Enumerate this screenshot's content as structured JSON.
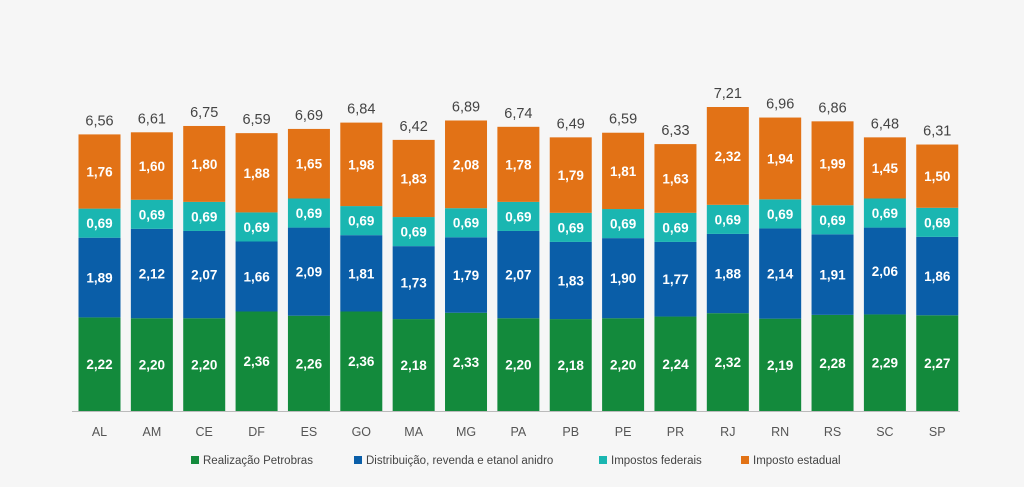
{
  "colors": {
    "background": "#f6f6f6",
    "realizacao": "#138a3c",
    "distribuicao": "#0a5ea8",
    "impostos_federais": "#1ab6b1",
    "imposto_estadual": "#e27216",
    "axis": "#bbbbbb"
  },
  "chart_data": {
    "type": "bar",
    "stacked": true,
    "categories": [
      "AL",
      "AM",
      "CE",
      "DF",
      "ES",
      "GO",
      "MA",
      "MG",
      "PA",
      "PB",
      "PE",
      "PR",
      "RJ",
      "RN",
      "RS",
      "SC",
      "SP"
    ],
    "series": [
      {
        "name": "Realização Petrobras",
        "color_key": "realizacao",
        "values": [
          2.22,
          2.2,
          2.2,
          2.36,
          2.26,
          2.36,
          2.18,
          2.33,
          2.2,
          2.18,
          2.2,
          2.24,
          2.32,
          2.19,
          2.28,
          2.29,
          2.27
        ],
        "labels": [
          "2,22",
          "2,20",
          "2,20",
          "2,36",
          "2,26",
          "2,36",
          "2,18",
          "2,33",
          "2,20",
          "2,18",
          "2,20",
          "2,24",
          "2,32",
          "2,19",
          "2,28",
          "2,29",
          "2,27"
        ]
      },
      {
        "name": "Distribuição, revenda e etanol anidro",
        "color_key": "distribuicao",
        "values": [
          1.89,
          2.12,
          2.07,
          1.66,
          2.09,
          1.81,
          1.73,
          1.79,
          2.07,
          1.83,
          1.9,
          1.77,
          1.88,
          2.14,
          1.91,
          2.06,
          1.86
        ],
        "labels": [
          "1,89",
          "2,12",
          "2,07",
          "1,66",
          "2,09",
          "1,81",
          "1,73",
          "1,79",
          "2,07",
          "1,83",
          "1,90",
          "1,77",
          "1,88",
          "2,14",
          "1,91",
          "2,06",
          "1,86"
        ]
      },
      {
        "name": "Impostos federais",
        "color_key": "impostos_federais",
        "values": [
          0.69,
          0.69,
          0.69,
          0.69,
          0.69,
          0.69,
          0.69,
          0.69,
          0.69,
          0.69,
          0.69,
          0.69,
          0.69,
          0.69,
          0.69,
          0.69,
          0.69
        ],
        "labels": [
          "0,69",
          "0,69",
          "0,69",
          "0,69",
          "0,69",
          "0,69",
          "0,69",
          "0,69",
          "0,69",
          "0,69",
          "0,69",
          "0,69",
          "0,69",
          "0,69",
          "0,69",
          "0,69",
          "0,69"
        ]
      },
      {
        "name": "Imposto estadual",
        "color_key": "imposto_estadual",
        "values": [
          1.76,
          1.6,
          1.8,
          1.88,
          1.65,
          1.98,
          1.83,
          2.08,
          1.78,
          1.79,
          1.81,
          1.63,
          2.32,
          1.94,
          1.99,
          1.45,
          1.5
        ],
        "labels": [
          "1,76",
          "1,60",
          "1,80",
          "1,88",
          "1,65",
          "1,98",
          "1,83",
          "2,08",
          "1,78",
          "1,79",
          "1,81",
          "1,63",
          "2,32",
          "1,94",
          "1,99",
          "1,45",
          "1,50"
        ]
      }
    ],
    "totals": [
      6.56,
      6.61,
      6.75,
      6.59,
      6.69,
      6.84,
      6.42,
      6.89,
      6.74,
      6.49,
      6.59,
      6.33,
      7.21,
      6.96,
      6.86,
      6.48,
      6.31
    ],
    "total_labels": [
      "6,56",
      "6,61",
      "6,75",
      "6,59",
      "6,69",
      "6,84",
      "6,42",
      "6,89",
      "6,74",
      "6,49",
      "6,59",
      "6,33",
      "7,21",
      "6,96",
      "6,86",
      "6,48",
      "6,31"
    ],
    "ylim": [
      0,
      7.21
    ],
    "grid": false,
    "legend_position": "bottom",
    "title": "",
    "xlabel": "",
    "ylabel": ""
  }
}
